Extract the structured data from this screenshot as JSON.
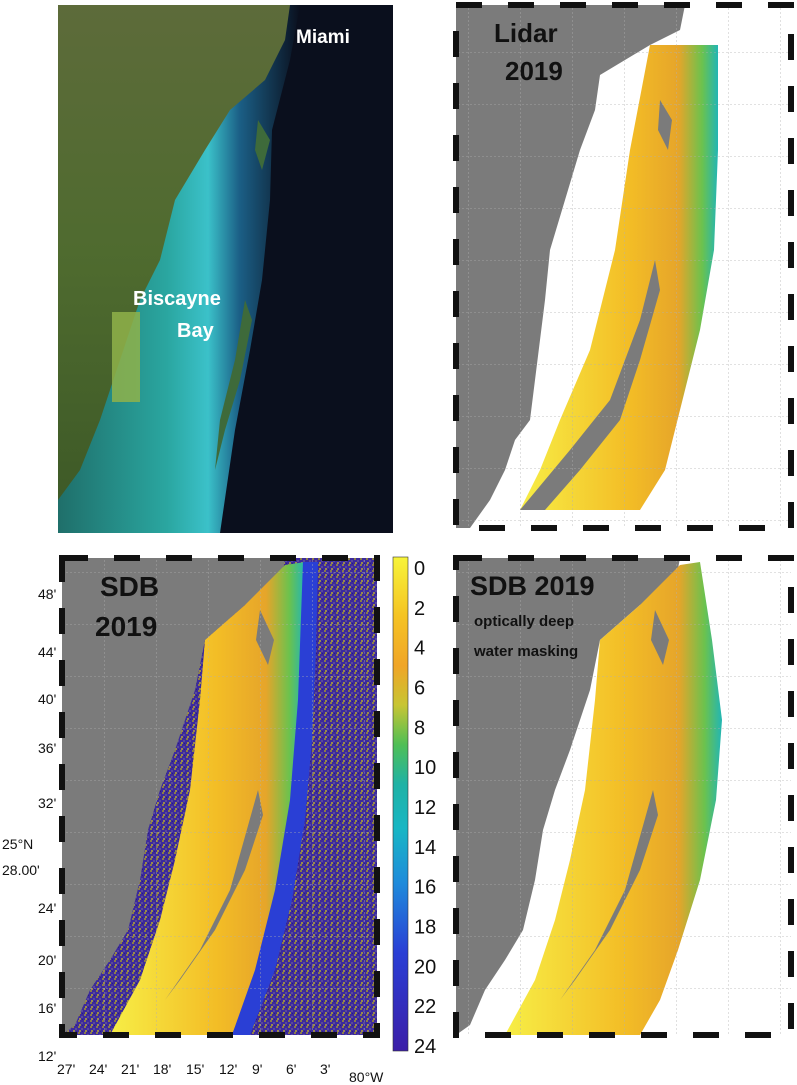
{
  "panels": [
    {
      "id": "satellite",
      "labels": [
        "Miami",
        "Biscayne",
        "Bay"
      ]
    },
    {
      "id": "lidar",
      "labels": [
        "Lidar",
        "2019"
      ]
    },
    {
      "id": "sdb",
      "labels": [
        "SDB",
        "2019"
      ]
    },
    {
      "id": "sdb_masked",
      "labels": [
        "SDB 2019",
        "optically deep",
        "water masking"
      ]
    }
  ],
  "lat_ticks": [
    "48'",
    "44'",
    "40'",
    "36'",
    "32'",
    "28.00'",
    "24'",
    "20'",
    "16'",
    "12'"
  ],
  "lat_label": "25°N",
  "lon_ticks": [
    "27'",
    "24'",
    "21'",
    "18'",
    "15'",
    "12'",
    "9'",
    "6'",
    "3'"
  ],
  "lon_label": "80°W",
  "colorbar": {
    "ticks": [
      "0",
      "2",
      "4",
      "6",
      "8",
      "10",
      "12",
      "14",
      "16",
      "18",
      "20",
      "22",
      "24"
    ],
    "min": 0,
    "max": 24,
    "colors": [
      "#f7f43a",
      "#f5c323",
      "#f0a527",
      "#c7c533",
      "#4fbf56",
      "#1fb2a5",
      "#18b6c4",
      "#1f8bdb",
      "#2a3fd5",
      "#3b1ea8"
    ]
  },
  "colors": {
    "land": "#7b7b7b",
    "sea_dark": "#0a0f1d",
    "shallow": "#f2c21f",
    "deep": "#3c2a9c"
  }
}
